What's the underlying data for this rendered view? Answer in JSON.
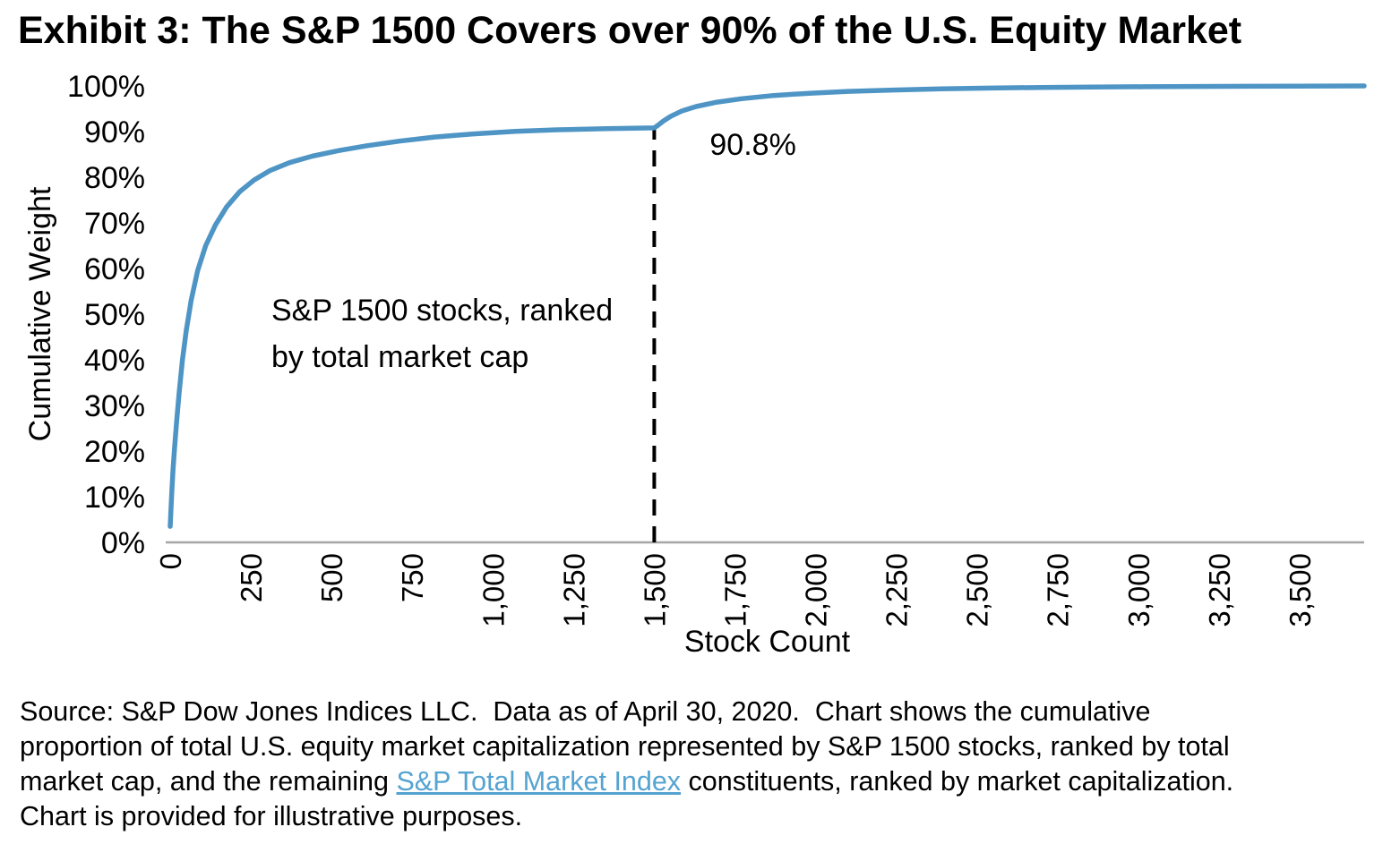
{
  "title": "Exhibit 3: The S&P 1500 Covers over 90% of the U.S. Equity Market",
  "colors": {
    "curve": "#4e95c5",
    "axis": "#a6a6a6",
    "dashed_line": "#000000",
    "link": "#55a3d0",
    "text": "#000000"
  },
  "chart_data": {
    "type": "line",
    "title": "Exhibit 3: The S&P 1500 Covers over 90% of the U.S. Equity Market",
    "xlabel": "Stock Count",
    "ylabel": "Cumulative Weight",
    "xlim": [
      0,
      3700
    ],
    "ylim": [
      0,
      100
    ],
    "grid": false,
    "legend": "none",
    "x_ticks": [
      [
        0,
        "0"
      ],
      [
        250,
        "250"
      ],
      [
        500,
        "500"
      ],
      [
        750,
        "750"
      ],
      [
        1000,
        "1,000"
      ],
      [
        1250,
        "1,250"
      ],
      [
        1500,
        "1,500"
      ],
      [
        1750,
        "1,750"
      ],
      [
        2000,
        "2,000"
      ],
      [
        2250,
        "2,250"
      ],
      [
        2500,
        "2,500"
      ],
      [
        2750,
        "2,750"
      ],
      [
        3000,
        "3,000"
      ],
      [
        3250,
        "3,250"
      ],
      [
        3500,
        "3,500"
      ]
    ],
    "y_ticks": [
      [
        0,
        "0%"
      ],
      [
        10,
        "10%"
      ],
      [
        20,
        "20%"
      ],
      [
        30,
        "30%"
      ],
      [
        40,
        "40%"
      ],
      [
        50,
        "50%"
      ],
      [
        60,
        "60%"
      ],
      [
        70,
        "70%"
      ],
      [
        80,
        "80%"
      ],
      [
        90,
        "90%"
      ],
      [
        100,
        "100%"
      ]
    ],
    "series": [
      {
        "name": "Cumulative proportion of U.S. equity market cap",
        "points": [
          [
            0,
            3.5
          ],
          [
            2,
            6.5
          ],
          [
            5,
            11
          ],
          [
            9,
            16
          ],
          [
            14,
            21
          ],
          [
            20,
            26.5
          ],
          [
            28,
            33
          ],
          [
            38,
            40
          ],
          [
            50,
            46.5
          ],
          [
            65,
            53
          ],
          [
            85,
            59.5
          ],
          [
            110,
            65
          ],
          [
            140,
            69.5
          ],
          [
            175,
            73.5
          ],
          [
            215,
            76.8
          ],
          [
            260,
            79.4
          ],
          [
            310,
            81.5
          ],
          [
            370,
            83.2
          ],
          [
            440,
            84.6
          ],
          [
            520,
            85.8
          ],
          [
            610,
            86.9
          ],
          [
            710,
            87.9
          ],
          [
            820,
            88.8
          ],
          [
            940,
            89.5
          ],
          [
            1070,
            90.05
          ],
          [
            1200,
            90.4
          ],
          [
            1350,
            90.62
          ],
          [
            1500,
            90.8
          ],
          [
            1512,
            91.4
          ],
          [
            1528,
            92.3
          ],
          [
            1550,
            93.3
          ],
          [
            1585,
            94.5
          ],
          [
            1630,
            95.5
          ],
          [
            1690,
            96.4
          ],
          [
            1770,
            97.2
          ],
          [
            1870,
            97.9
          ],
          [
            1980,
            98.4
          ],
          [
            2100,
            98.8
          ],
          [
            2240,
            99.1
          ],
          [
            2390,
            99.35
          ],
          [
            2540,
            99.52
          ],
          [
            2700,
            99.66
          ],
          [
            2860,
            99.76
          ],
          [
            3020,
            99.83
          ],
          [
            3180,
            99.89
          ],
          [
            3340,
            99.93
          ],
          [
            3500,
            99.96
          ],
          [
            3700,
            100
          ]
        ]
      }
    ],
    "marker": {
      "x": 1500,
      "y": 90.8,
      "value_label": "90.8%",
      "line_style": "dashed"
    },
    "annotation": {
      "lines": [
        "S&P 1500 stocks, ranked",
        "by total market cap"
      ]
    }
  },
  "source": {
    "lines": [
      [
        {
          "text": "Source: S&P Dow Jones Indices LLC.  Data as of April 30, 2020.  Chart shows the cumulative"
        }
      ],
      [
        {
          "text": "proportion of total U.S. equity market capitalization represented by S&P 1500 stocks, ranked by total"
        }
      ],
      [
        {
          "text": "market cap, and the remaining "
        },
        {
          "text": "S&P Total Market Index",
          "link": true
        },
        {
          "text": " constituents, ranked by market capitalization."
        }
      ],
      [
        {
          "text": "Chart is provided for illustrative purposes."
        }
      ]
    ]
  }
}
